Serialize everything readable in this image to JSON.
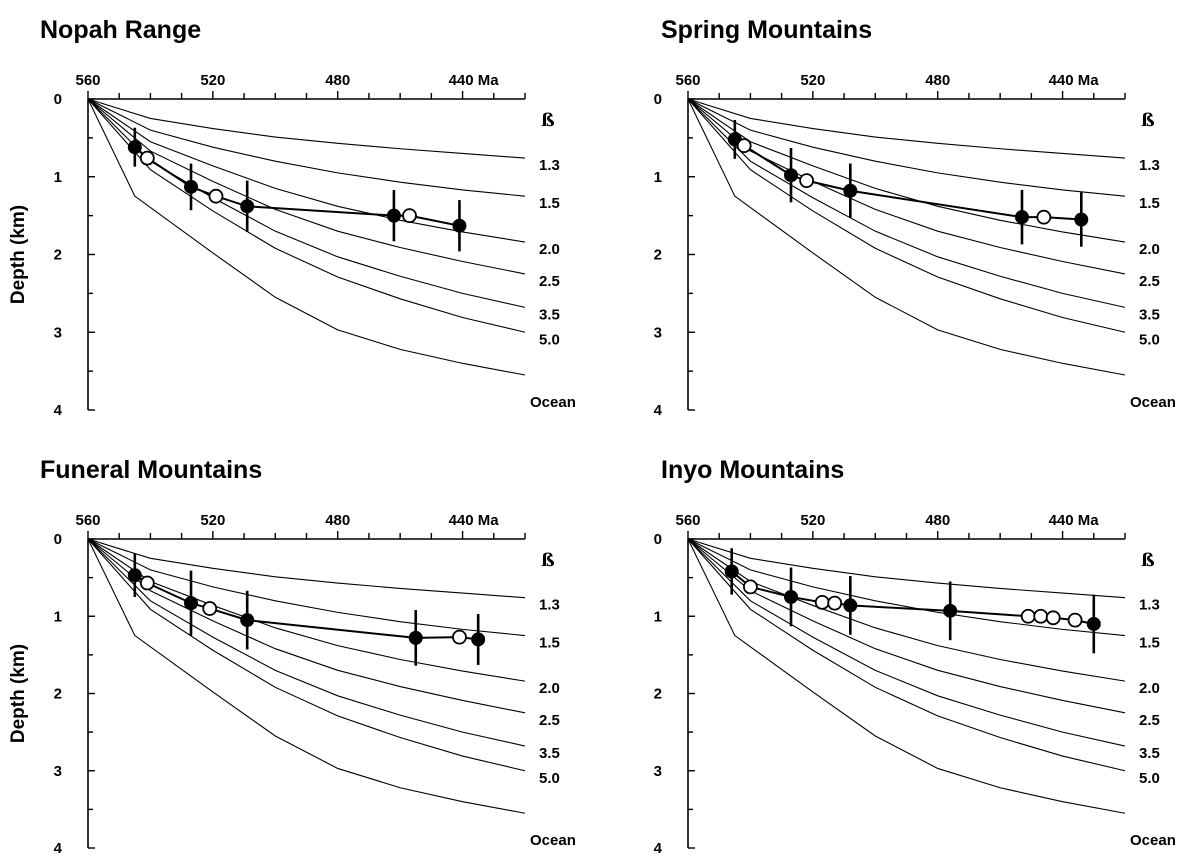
{
  "figure": {
    "y_axis_label": "Depth (km)",
    "x_unit": "Ma",
    "beta_symbol": "ß"
  },
  "chart_data": [
    {
      "type": "line",
      "title": "Nopah Range",
      "ylabel": "Depth (km)",
      "xlabel": "",
      "x_ticks": [
        "560",
        "520",
        "480",
        "440 Ma"
      ],
      "y_ticks": [
        "0",
        "1",
        "2",
        "3",
        "4"
      ],
      "xlim": [
        560,
        420
      ],
      "ylim": [
        0,
        4
      ],
      "series": [
        {
          "name": "1.3",
          "x": [
            560,
            540,
            520,
            500,
            480,
            460,
            440,
            420
          ],
          "y": [
            0,
            0.25,
            0.38,
            0.49,
            0.57,
            0.64,
            0.7,
            0.76
          ]
        },
        {
          "name": "1.5",
          "x": [
            560,
            540,
            520,
            500,
            480,
            460,
            440,
            420
          ],
          "y": [
            0,
            0.4,
            0.62,
            0.8,
            0.95,
            1.07,
            1.17,
            1.25
          ]
        },
        {
          "name": "2.0",
          "x": [
            560,
            540,
            520,
            500,
            480,
            460,
            440,
            420
          ],
          "y": [
            0,
            0.55,
            0.86,
            1.15,
            1.38,
            1.56,
            1.71,
            1.84
          ]
        },
        {
          "name": "2.5",
          "x": [
            560,
            540,
            520,
            500,
            480,
            460,
            440,
            420
          ],
          "y": [
            0,
            0.67,
            1.06,
            1.42,
            1.7,
            1.91,
            2.09,
            2.25
          ]
        },
        {
          "name": "3.5",
          "x": [
            560,
            540,
            520,
            500,
            480,
            460,
            440,
            420
          ],
          "y": [
            0,
            0.8,
            1.27,
            1.7,
            2.03,
            2.28,
            2.5,
            2.68
          ]
        },
        {
          "name": "5.0",
          "x": [
            560,
            540,
            520,
            500,
            480,
            460,
            440,
            420
          ],
          "y": [
            0,
            0.91,
            1.44,
            1.92,
            2.29,
            2.57,
            2.81,
            3.0
          ]
        },
        {
          "name": "Ocean",
          "x": [
            560,
            545,
            520,
            500,
            480,
            460,
            440,
            420
          ],
          "y": [
            0,
            1.25,
            1.98,
            2.55,
            2.97,
            3.22,
            3.4,
            3.55
          ]
        }
      ],
      "samples_filled": [
        {
          "x": 545,
          "y": 0.62,
          "err": 0.25
        },
        {
          "x": 527,
          "y": 1.13,
          "err": 0.3
        },
        {
          "x": 509,
          "y": 1.38,
          "err": 0.33
        },
        {
          "x": 462,
          "y": 1.5,
          "err": 0.33
        },
        {
          "x": 441,
          "y": 1.63,
          "err": 0.33
        }
      ],
      "samples_open": [
        {
          "x": 541,
          "y": 0.76
        },
        {
          "x": 519,
          "y": 1.25
        },
        {
          "x": 457,
          "y": 1.5
        }
      ],
      "connector": {
        "x": [
          545,
          541,
          527,
          519,
          509,
          462,
          457,
          441
        ],
        "y": [
          0.62,
          0.76,
          1.13,
          1.25,
          1.38,
          1.5,
          1.5,
          1.63
        ]
      }
    },
    {
      "type": "line",
      "title": "Spring Mountains",
      "ylabel": "",
      "xlabel": "",
      "x_ticks": [
        "560",
        "520",
        "480",
        "440 Ma"
      ],
      "y_ticks": [
        "0",
        "1",
        "2",
        "3",
        "4"
      ],
      "xlim": [
        560,
        420
      ],
      "ylim": [
        0,
        4
      ],
      "series": [
        {
          "name": "1.3",
          "x": [
            560,
            540,
            520,
            500,
            480,
            460,
            440,
            420
          ],
          "y": [
            0,
            0.25,
            0.38,
            0.49,
            0.57,
            0.64,
            0.7,
            0.76
          ]
        },
        {
          "name": "1.5",
          "x": [
            560,
            540,
            520,
            500,
            480,
            460,
            440,
            420
          ],
          "y": [
            0,
            0.4,
            0.62,
            0.8,
            0.95,
            1.07,
            1.17,
            1.25
          ]
        },
        {
          "name": "2.0",
          "x": [
            560,
            540,
            520,
            500,
            480,
            460,
            440,
            420
          ],
          "y": [
            0,
            0.55,
            0.86,
            1.15,
            1.38,
            1.56,
            1.71,
            1.84
          ]
        },
        {
          "name": "2.5",
          "x": [
            560,
            540,
            520,
            500,
            480,
            460,
            440,
            420
          ],
          "y": [
            0,
            0.67,
            1.06,
            1.42,
            1.7,
            1.91,
            2.09,
            2.25
          ]
        },
        {
          "name": "3.5",
          "x": [
            560,
            540,
            520,
            500,
            480,
            460,
            440,
            420
          ],
          "y": [
            0,
            0.8,
            1.27,
            1.7,
            2.03,
            2.28,
            2.5,
            2.68
          ]
        },
        {
          "name": "5.0",
          "x": [
            560,
            540,
            520,
            500,
            480,
            460,
            440,
            420
          ],
          "y": [
            0,
            0.91,
            1.44,
            1.92,
            2.29,
            2.57,
            2.81,
            3.0
          ]
        },
        {
          "name": "Ocean",
          "x": [
            560,
            545,
            520,
            500,
            480,
            460,
            440,
            420
          ],
          "y": [
            0,
            1.25,
            1.98,
            2.55,
            2.97,
            3.22,
            3.4,
            3.55
          ]
        }
      ],
      "samples_filled": [
        {
          "x": 545,
          "y": 0.52,
          "err": 0.25
        },
        {
          "x": 527,
          "y": 0.98,
          "err": 0.35
        },
        {
          "x": 508,
          "y": 1.18,
          "err": 0.35
        },
        {
          "x": 453,
          "y": 1.52,
          "err": 0.35
        },
        {
          "x": 434,
          "y": 1.55,
          "err": 0.35
        }
      ],
      "samples_open": [
        {
          "x": 542,
          "y": 0.6
        },
        {
          "x": 522,
          "y": 1.05
        },
        {
          "x": 446,
          "y": 1.52
        }
      ],
      "connector": {
        "x": [
          545,
          542,
          527,
          522,
          508,
          453,
          446,
          434
        ],
        "y": [
          0.52,
          0.6,
          0.98,
          1.05,
          1.18,
          1.52,
          1.52,
          1.55
        ]
      }
    },
    {
      "type": "line",
      "title": "Funeral Mountains",
      "ylabel": "Depth (km)",
      "xlabel": "",
      "x_ticks": [
        "560",
        "520",
        "480",
        "440 Ma"
      ],
      "y_ticks": [
        "0",
        "1",
        "2",
        "3",
        "4"
      ],
      "xlim": [
        560,
        420
      ],
      "ylim": [
        0,
        4
      ],
      "series": [
        {
          "name": "1.3",
          "x": [
            560,
            540,
            520,
            500,
            480,
            460,
            440,
            420
          ],
          "y": [
            0,
            0.25,
            0.38,
            0.49,
            0.57,
            0.64,
            0.7,
            0.76
          ]
        },
        {
          "name": "1.5",
          "x": [
            560,
            540,
            520,
            500,
            480,
            460,
            440,
            420
          ],
          "y": [
            0,
            0.4,
            0.62,
            0.8,
            0.95,
            1.07,
            1.17,
            1.25
          ]
        },
        {
          "name": "2.0",
          "x": [
            560,
            540,
            520,
            500,
            480,
            460,
            440,
            420
          ],
          "y": [
            0,
            0.55,
            0.86,
            1.15,
            1.38,
            1.56,
            1.71,
            1.84
          ]
        },
        {
          "name": "2.5",
          "x": [
            560,
            540,
            520,
            500,
            480,
            460,
            440,
            420
          ],
          "y": [
            0,
            0.67,
            1.06,
            1.42,
            1.7,
            1.91,
            2.09,
            2.25
          ]
        },
        {
          "name": "3.5",
          "x": [
            560,
            540,
            520,
            500,
            480,
            460,
            440,
            420
          ],
          "y": [
            0,
            0.8,
            1.27,
            1.7,
            2.03,
            2.28,
            2.5,
            2.68
          ]
        },
        {
          "name": "5.0",
          "x": [
            560,
            540,
            520,
            500,
            480,
            460,
            440,
            420
          ],
          "y": [
            0,
            0.91,
            1.44,
            1.92,
            2.29,
            2.57,
            2.81,
            3.0
          ]
        },
        {
          "name": "Ocean",
          "x": [
            560,
            545,
            520,
            500,
            480,
            460,
            440,
            420
          ],
          "y": [
            0,
            1.25,
            1.98,
            2.55,
            2.97,
            3.22,
            3.4,
            3.55
          ]
        }
      ],
      "samples_filled": [
        {
          "x": 545,
          "y": 0.47,
          "err": 0.28
        },
        {
          "x": 527,
          "y": 0.83,
          "err": 0.42
        },
        {
          "x": 509,
          "y": 1.05,
          "err": 0.38
        },
        {
          "x": 455,
          "y": 1.28,
          "err": 0.36
        },
        {
          "x": 435,
          "y": 1.3,
          "err": 0.33
        }
      ],
      "samples_open": [
        {
          "x": 541,
          "y": 0.57
        },
        {
          "x": 521,
          "y": 0.9
        },
        {
          "x": 441,
          "y": 1.27
        }
      ],
      "connector": {
        "x": [
          545,
          541,
          527,
          521,
          509,
          455,
          441,
          435
        ],
        "y": [
          0.47,
          0.57,
          0.83,
          0.9,
          1.05,
          1.28,
          1.27,
          1.3
        ]
      }
    },
    {
      "type": "line",
      "title": "Inyo Mountains",
      "ylabel": "",
      "xlabel": "",
      "x_ticks": [
        "560",
        "520",
        "480",
        "440 Ma"
      ],
      "y_ticks": [
        "0",
        "1",
        "2",
        "3",
        "4"
      ],
      "xlim": [
        560,
        420
      ],
      "ylim": [
        0,
        4
      ],
      "series": [
        {
          "name": "1.3",
          "x": [
            560,
            540,
            520,
            500,
            480,
            460,
            440,
            420
          ],
          "y": [
            0,
            0.25,
            0.38,
            0.49,
            0.57,
            0.64,
            0.7,
            0.76
          ]
        },
        {
          "name": "1.5",
          "x": [
            560,
            540,
            520,
            500,
            480,
            460,
            440,
            420
          ],
          "y": [
            0,
            0.4,
            0.62,
            0.8,
            0.95,
            1.07,
            1.17,
            1.25
          ]
        },
        {
          "name": "2.0",
          "x": [
            560,
            540,
            520,
            500,
            480,
            460,
            440,
            420
          ],
          "y": [
            0,
            0.55,
            0.86,
            1.15,
            1.38,
            1.56,
            1.71,
            1.84
          ]
        },
        {
          "name": "2.5",
          "x": [
            560,
            540,
            520,
            500,
            480,
            460,
            440,
            420
          ],
          "y": [
            0,
            0.67,
            1.06,
            1.42,
            1.7,
            1.91,
            2.09,
            2.25
          ]
        },
        {
          "name": "3.5",
          "x": [
            560,
            540,
            520,
            500,
            480,
            460,
            440,
            420
          ],
          "y": [
            0,
            0.8,
            1.27,
            1.7,
            2.03,
            2.28,
            2.5,
            2.68
          ]
        },
        {
          "name": "5.0",
          "x": [
            560,
            540,
            520,
            500,
            480,
            460,
            440,
            420
          ],
          "y": [
            0,
            0.91,
            1.44,
            1.92,
            2.29,
            2.57,
            2.81,
            3.0
          ]
        },
        {
          "name": "Ocean",
          "x": [
            560,
            545,
            520,
            500,
            480,
            460,
            440,
            420
          ],
          "y": [
            0,
            1.25,
            1.98,
            2.55,
            2.97,
            3.22,
            3.4,
            3.55
          ]
        }
      ],
      "samples_filled": [
        {
          "x": 546,
          "y": 0.42,
          "err": 0.3
        },
        {
          "x": 527,
          "y": 0.75,
          "err": 0.38
        },
        {
          "x": 508,
          "y": 0.86,
          "err": 0.38
        },
        {
          "x": 476,
          "y": 0.93,
          "err": 0.38
        },
        {
          "x": 430,
          "y": 1.1,
          "err": 0.38
        }
      ],
      "samples_open": [
        {
          "x": 540,
          "y": 0.62
        },
        {
          "x": 517,
          "y": 0.82
        },
        {
          "x": 513,
          "y": 0.83
        },
        {
          "x": 451,
          "y": 1.0
        },
        {
          "x": 447,
          "y": 1.0
        },
        {
          "x": 443,
          "y": 1.02
        },
        {
          "x": 436,
          "y": 1.05
        }
      ],
      "connector": {
        "x": [
          546,
          540,
          527,
          517,
          513,
          508,
          476,
          451,
          447,
          443,
          436,
          430
        ],
        "y": [
          0.42,
          0.62,
          0.75,
          0.82,
          0.83,
          0.86,
          0.93,
          1.0,
          1.0,
          1.02,
          1.05,
          1.1
        ]
      }
    }
  ]
}
